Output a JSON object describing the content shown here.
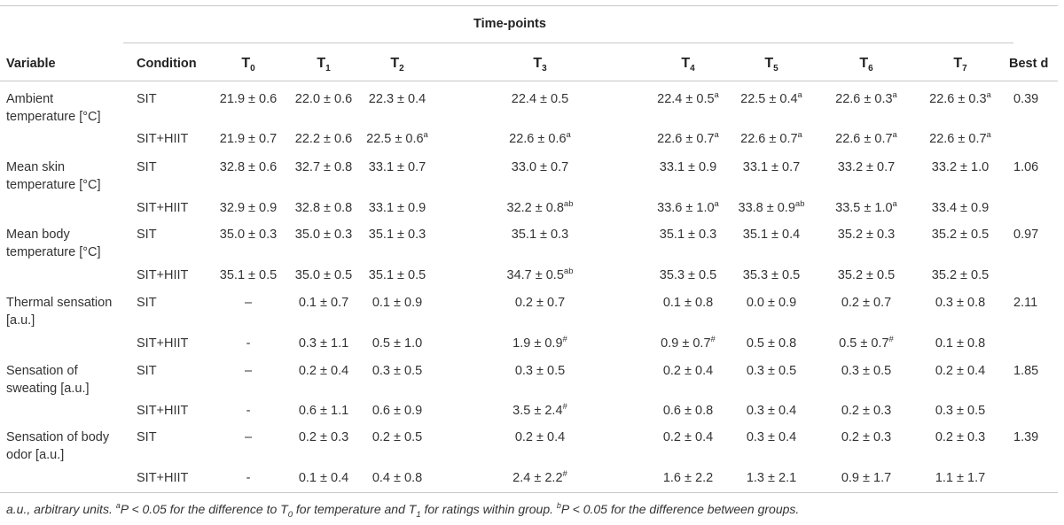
{
  "table": {
    "spanner": "Time-points",
    "headers": {
      "variable": "Variable",
      "condition": "Condition",
      "timepoints": [
        {
          "base": "T",
          "sub": "0"
        },
        {
          "base": "T",
          "sub": "1"
        },
        {
          "base": "T",
          "sub": "2"
        },
        {
          "base": "T",
          "sub": "3"
        },
        {
          "base": "T",
          "sub": "4"
        },
        {
          "base": "T",
          "sub": "5"
        },
        {
          "base": "T",
          "sub": "6"
        },
        {
          "base": "T",
          "sub": "7"
        }
      ],
      "best_d": "Best d"
    },
    "groups": [
      {
        "variable_lines": [
          "Ambient",
          "temperature [°C]"
        ],
        "best_d": "0.39",
        "rows": [
          {
            "condition": "SIT",
            "cells": [
              {
                "v": "21.9 ± 0.6",
                "s": ""
              },
              {
                "v": "22.0 ± 0.6",
                "s": ""
              },
              {
                "v": "22.3 ± 0.4",
                "s": ""
              },
              {
                "v": "22.4 ± 0.5",
                "s": ""
              },
              {
                "v": "22.4 ± 0.5",
                "s": "a"
              },
              {
                "v": "22.5 ± 0.4",
                "s": "a"
              },
              {
                "v": "22.6 ± 0.3",
                "s": "a"
              },
              {
                "v": "22.6 ± 0.3",
                "s": "a"
              }
            ]
          },
          {
            "condition": "SIT+HIIT",
            "cells": [
              {
                "v": "21.9 ± 0.7",
                "s": ""
              },
              {
                "v": "22.2 ± 0.6",
                "s": ""
              },
              {
                "v": "22.5 ± 0.6",
                "s": "a"
              },
              {
                "v": "22.6 ± 0.6",
                "s": "a"
              },
              {
                "v": "22.6 ± 0.7",
                "s": "a"
              },
              {
                "v": "22.6 ± 0.7",
                "s": "a"
              },
              {
                "v": "22.6 ± 0.7",
                "s": "a"
              },
              {
                "v": "22.6 ± 0.7",
                "s": "a"
              }
            ]
          }
        ]
      },
      {
        "variable_lines": [
          "Mean skin",
          "temperature [°C]"
        ],
        "best_d": "1.06",
        "rows": [
          {
            "condition": "SIT",
            "cells": [
              {
                "v": "32.8 ± 0.6",
                "s": ""
              },
              {
                "v": "32.7 ± 0.8",
                "s": ""
              },
              {
                "v": "33.1 ± 0.7",
                "s": ""
              },
              {
                "v": "33.0 ± 0.7",
                "s": ""
              },
              {
                "v": "33.1 ± 0.9",
                "s": ""
              },
              {
                "v": "33.1 ± 0.7",
                "s": ""
              },
              {
                "v": "33.2 ± 0.7",
                "s": ""
              },
              {
                "v": "33.2 ± 1.0",
                "s": ""
              }
            ]
          },
          {
            "condition": "SIT+HIIT",
            "cells": [
              {
                "v": "32.9 ± 0.9",
                "s": ""
              },
              {
                "v": "32.8 ± 0.8",
                "s": ""
              },
              {
                "v": "33.1 ± 0.9",
                "s": ""
              },
              {
                "v": "32.2 ± 0.8",
                "s": "ab"
              },
              {
                "v": "33.6 ± 1.0",
                "s": "a"
              },
              {
                "v": "33.8 ± 0.9",
                "s": "ab"
              },
              {
                "v": "33.5 ± 1.0",
                "s": "a"
              },
              {
                "v": "33.4 ± 0.9",
                "s": ""
              }
            ]
          }
        ]
      },
      {
        "variable_lines": [
          "Mean body",
          "temperature [°C]"
        ],
        "best_d": "0.97",
        "rows": [
          {
            "condition": "SIT",
            "cells": [
              {
                "v": "35.0 ± 0.3",
                "s": ""
              },
              {
                "v": "35.0 ± 0.3",
                "s": ""
              },
              {
                "v": "35.1 ± 0.3",
                "s": ""
              },
              {
                "v": "35.1 ± 0.3",
                "s": ""
              },
              {
                "v": "35.1 ± 0.3",
                "s": ""
              },
              {
                "v": "35.1 ± 0.4",
                "s": ""
              },
              {
                "v": "35.2 ± 0.3",
                "s": ""
              },
              {
                "v": "35.2 ± 0.5",
                "s": ""
              }
            ]
          },
          {
            "condition": "SIT+HIIT",
            "cells": [
              {
                "v": "35.1 ± 0.5",
                "s": ""
              },
              {
                "v": "35.0 ± 0.5",
                "s": ""
              },
              {
                "v": "35.1 ± 0.5",
                "s": ""
              },
              {
                "v": "34.7 ± 0.5",
                "s": "ab"
              },
              {
                "v": "35.3 ± 0.5",
                "s": ""
              },
              {
                "v": "35.3 ± 0.5",
                "s": ""
              },
              {
                "v": "35.2 ± 0.5",
                "s": ""
              },
              {
                "v": "35.2 ± 0.5",
                "s": ""
              }
            ]
          }
        ]
      },
      {
        "variable_lines": [
          "Thermal sensation",
          "[a.u.]"
        ],
        "best_d": "2.11",
        "rows": [
          {
            "condition": "SIT",
            "cells": [
              {
                "v": "–",
                "s": ""
              },
              {
                "v": "0.1 ± 0.7",
                "s": ""
              },
              {
                "v": "0.1 ± 0.9",
                "s": ""
              },
              {
                "v": "0.2 ± 0.7",
                "s": ""
              },
              {
                "v": "0.1 ± 0.8",
                "s": ""
              },
              {
                "v": "0.0 ± 0.9",
                "s": ""
              },
              {
                "v": "0.2 ± 0.7",
                "s": ""
              },
              {
                "v": "0.3 ± 0.8",
                "s": ""
              }
            ]
          },
          {
            "condition": "SIT+HIIT",
            "cells": [
              {
                "v": "-",
                "s": ""
              },
              {
                "v": "0.3 ± 1.1",
                "s": ""
              },
              {
                "v": "0.5 ± 1.0",
                "s": ""
              },
              {
                "v": "1.9 ± 0.9",
                "s": "#"
              },
              {
                "v": "0.9 ± 0.7",
                "s": "#"
              },
              {
                "v": "0.5 ± 0.8",
                "s": ""
              },
              {
                "v": "0.5 ± 0.7",
                "s": "#"
              },
              {
                "v": "0.1 ± 0.8",
                "s": ""
              }
            ]
          }
        ]
      },
      {
        "variable_lines": [
          "Sensation of",
          "sweating [a.u.]"
        ],
        "best_d": "1.85",
        "rows": [
          {
            "condition": "SIT",
            "cells": [
              {
                "v": "–",
                "s": ""
              },
              {
                "v": "0.2 ± 0.4",
                "s": ""
              },
              {
                "v": "0.3 ± 0.5",
                "s": ""
              },
              {
                "v": "0.3 ± 0.5",
                "s": ""
              },
              {
                "v": "0.2 ± 0.4",
                "s": ""
              },
              {
                "v": "0.3 ± 0.5",
                "s": ""
              },
              {
                "v": "0.3 ± 0.5",
                "s": ""
              },
              {
                "v": "0.2 ± 0.4",
                "s": ""
              }
            ]
          },
          {
            "condition": "SIT+HIIT",
            "cells": [
              {
                "v": "-",
                "s": ""
              },
              {
                "v": "0.6 ± 1.1",
                "s": ""
              },
              {
                "v": "0.6 ± 0.9",
                "s": ""
              },
              {
                "v": "3.5 ± 2.4",
                "s": "#"
              },
              {
                "v": "0.6 ± 0.8",
                "s": ""
              },
              {
                "v": "0.3 ± 0.4",
                "s": ""
              },
              {
                "v": "0.2 ± 0.3",
                "s": ""
              },
              {
                "v": "0.3 ± 0.5",
                "s": ""
              }
            ]
          }
        ]
      },
      {
        "variable_lines": [
          "Sensation of body",
          "odor [a.u.]"
        ],
        "best_d": "1.39",
        "rows": [
          {
            "condition": "SIT",
            "cells": [
              {
                "v": "–",
                "s": ""
              },
              {
                "v": "0.2 ± 0.3",
                "s": ""
              },
              {
                "v": "0.2 ± 0.5",
                "s": ""
              },
              {
                "v": "0.2 ± 0.4",
                "s": ""
              },
              {
                "v": "0.2 ± 0.4",
                "s": ""
              },
              {
                "v": "0.3 ± 0.4",
                "s": ""
              },
              {
                "v": "0.2 ± 0.3",
                "s": ""
              },
              {
                "v": "0.2 ± 0.3",
                "s": ""
              }
            ]
          },
          {
            "condition": "SIT+HIIT",
            "cells": [
              {
                "v": "-",
                "s": ""
              },
              {
                "v": "0.1 ± 0.4",
                "s": ""
              },
              {
                "v": "0.4 ± 0.8",
                "s": ""
              },
              {
                "v": "2.4 ± 2.2",
                "s": "#"
              },
              {
                "v": "1.6 ± 2.2",
                "s": ""
              },
              {
                "v": "1.3 ± 2.1",
                "s": ""
              },
              {
                "v": "0.9 ± 1.7",
                "s": ""
              },
              {
                "v": "1.1 ± 1.7",
                "s": ""
              }
            ]
          }
        ]
      }
    ]
  },
  "footnote": {
    "p1": "a.u., arbitrary units. ",
    "sup_a": "a",
    "p2": "P < 0.05 for the difference to T",
    "sub0": "0",
    "p3": " for temperature and T",
    "sub1": "1",
    "p4": " for ratings within group. ",
    "sup_b": "b",
    "p5": "P < 0.05 for the difference between groups."
  }
}
